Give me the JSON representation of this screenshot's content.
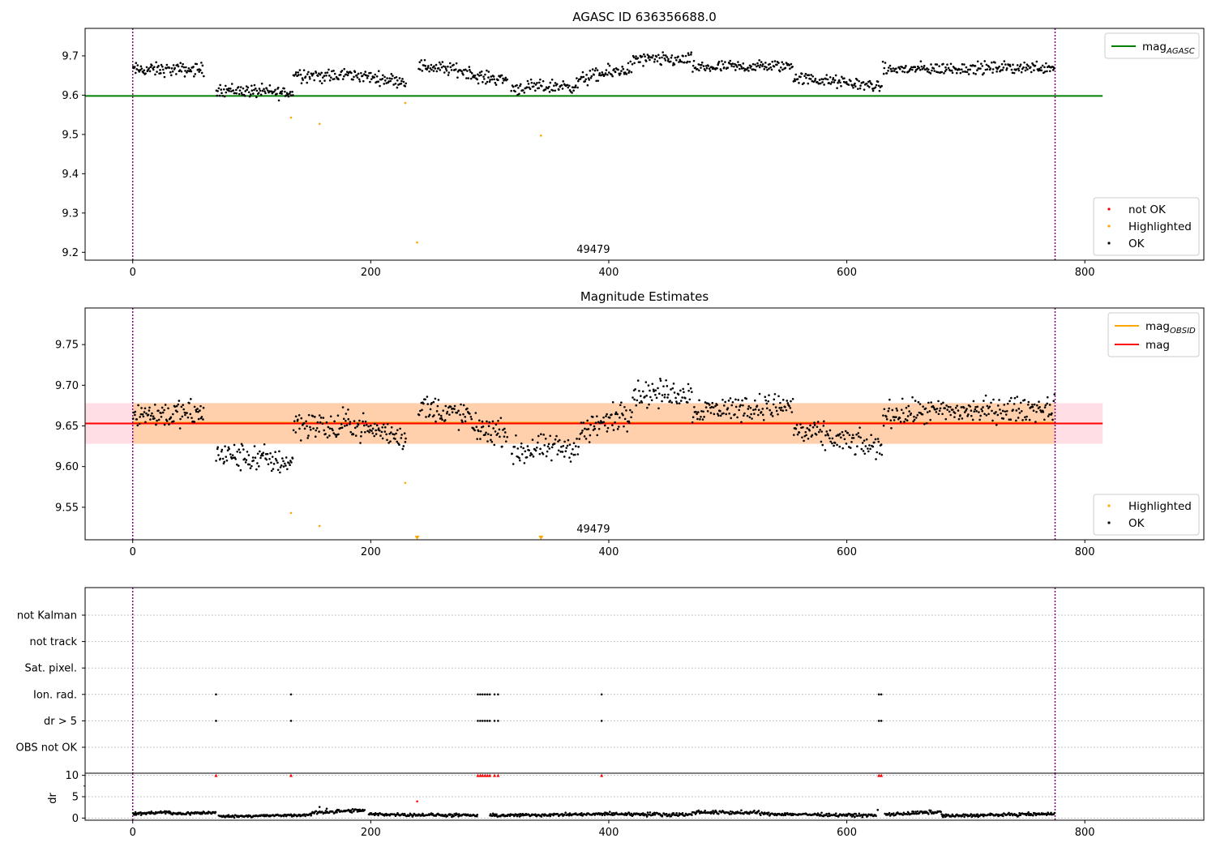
{
  "chart_data": [
    {
      "type": "scatter",
      "title": "AGASC ID 636356688.0",
      "xlim": [
        -40,
        900
      ],
      "ylim": [
        9.18,
        9.77
      ],
      "xticks": [
        0,
        200,
        400,
        600,
        800
      ],
      "yticks": [
        9.2,
        9.3,
        9.4,
        9.5,
        9.6,
        9.7
      ],
      "ytick_labels": [
        "9.2",
        "9.3",
        "9.4",
        "9.5",
        "9.6",
        "9.7"
      ],
      "obs_boundaries": [
        0,
        775
      ],
      "obsid_annotation": {
        "text": "49479",
        "x": 387
      },
      "reference_lines": [
        {
          "name": "mag",
          "sub": "AGASC",
          "y": 9.598,
          "x": [
            -40,
            815
          ],
          "color": "#008000"
        }
      ],
      "legend_lines": [
        {
          "label": "mag",
          "sub": "AGASC",
          "color": "#008000"
        }
      ],
      "legend_points": [
        {
          "label": "not OK",
          "color": "#ff0000"
        },
        {
          "label": "Highlighted",
          "color": "#ffa500"
        },
        {
          "label": "OK",
          "color": "#000000"
        }
      ],
      "series": [
        {
          "name": "Highlighted",
          "color": "#ffa500",
          "marker": "dot",
          "x": [
            133,
            157,
            229,
            239,
            343
          ],
          "y": [
            9.543,
            9.527,
            9.58,
            9.225,
            9.497
          ]
        },
        {
          "name": "OK",
          "color": "#000000",
          "marker": "dot",
          "segments": [
            {
              "x0": 0,
              "x1": 60,
              "n": 90,
              "trend": [
                9.665,
                9.665
              ],
              "amp": 0.012
            },
            {
              "x0": 70,
              "x1": 135,
              "n": 95,
              "trend": [
                9.615,
                9.605
              ],
              "amp": 0.012
            },
            {
              "x0": 135,
              "x1": 175,
              "n": 55,
              "trend": [
                9.655,
                9.645
              ],
              "amp": 0.013
            },
            {
              "x0": 175,
              "x1": 230,
              "n": 80,
              "trend": [
                9.655,
                9.635
              ],
              "amp": 0.011
            },
            {
              "x0": 240,
              "x1": 285,
              "n": 65,
              "trend": [
                9.675,
                9.66
              ],
              "amp": 0.012
            },
            {
              "x0": 285,
              "x1": 315,
              "n": 45,
              "trend": [
                9.648,
                9.64
              ],
              "amp": 0.011
            },
            {
              "x0": 318,
              "x1": 375,
              "n": 80,
              "trend": [
                9.618,
                9.625
              ],
              "amp": 0.012
            },
            {
              "x0": 375,
              "x1": 420,
              "n": 65,
              "trend": [
                9.64,
                9.67
              ],
              "amp": 0.013
            },
            {
              "x0": 420,
              "x1": 470,
              "n": 70,
              "trend": [
                9.69,
                9.69
              ],
              "amp": 0.012
            },
            {
              "x0": 470,
              "x1": 555,
              "n": 120,
              "trend": [
                9.67,
                9.675
              ],
              "amp": 0.011
            },
            {
              "x0": 555,
              "x1": 630,
              "n": 105,
              "trend": [
                9.645,
                9.622
              ],
              "amp": 0.011
            },
            {
              "x0": 630,
              "x1": 775,
              "n": 200,
              "trend": [
                9.665,
                9.672
              ],
              "amp": 0.011
            }
          ]
        }
      ]
    },
    {
      "type": "scatter",
      "title": "Magnitude Estimates",
      "xlim": [
        -40,
        900
      ],
      "ylim": [
        9.51,
        9.795
      ],
      "xticks": [
        0,
        200,
        400,
        600,
        800
      ],
      "yticks": [
        9.55,
        9.6,
        9.65,
        9.7,
        9.75
      ],
      "ytick_labels": [
        "9.55",
        "9.60",
        "9.65",
        "9.70",
        "9.75"
      ],
      "obs_boundaries": [
        0,
        775
      ],
      "obsid_annotation": {
        "text": "49479",
        "x": 387
      },
      "bands": [
        {
          "x": [
            -40,
            815
          ],
          "y": [
            9.628,
            9.678
          ],
          "color": "#ffc0cb",
          "opacity": 0.5
        },
        {
          "x": [
            0,
            775
          ],
          "y": [
            9.628,
            9.678
          ],
          "color": "#ffa500",
          "opacity": 0.25
        }
      ],
      "reference_lines": [
        {
          "name": "mag",
          "sub": "OBSID",
          "y": 9.654,
          "x": [
            0,
            775
          ],
          "color": "#ffa500"
        },
        {
          "name": "mag",
          "y": 9.653,
          "x": [
            -40,
            815
          ],
          "color": "#ff0000"
        }
      ],
      "legend_lines": [
        {
          "label": "mag",
          "sub": "OBSID",
          "color": "#ffa500"
        },
        {
          "label": "mag",
          "color": "#ff0000"
        }
      ],
      "legend_points": [
        {
          "label": "Highlighted",
          "color": "#ffa500"
        },
        {
          "label": "OK",
          "color": "#000000"
        }
      ],
      "series": [
        {
          "name": "Highlighted",
          "color": "#ffa500",
          "marker": "dot",
          "x": [
            133,
            157,
            229
          ],
          "y": [
            9.543,
            9.527,
            9.58
          ]
        },
        {
          "name": "Highlighted (below range)",
          "color": "#ffa500",
          "marker": "triangle-down",
          "x": [
            239,
            343
          ],
          "y": [
            9.511,
            9.511
          ]
        },
        {
          "name": "OK",
          "color": "#000000",
          "marker": "dot",
          "segments": [
            {
              "x0": 0,
              "x1": 60,
              "n": 90,
              "trend": [
                9.665,
                9.665
              ],
              "amp": 0.012
            },
            {
              "x0": 70,
              "x1": 135,
              "n": 95,
              "trend": [
                9.615,
                9.605
              ],
              "amp": 0.012
            },
            {
              "x0": 135,
              "x1": 175,
              "n": 55,
              "trend": [
                9.655,
                9.645
              ],
              "amp": 0.013
            },
            {
              "x0": 175,
              "x1": 230,
              "n": 80,
              "trend": [
                9.655,
                9.635
              ],
              "amp": 0.011
            },
            {
              "x0": 240,
              "x1": 285,
              "n": 65,
              "trend": [
                9.675,
                9.66
              ],
              "amp": 0.012
            },
            {
              "x0": 285,
              "x1": 315,
              "n": 45,
              "trend": [
                9.648,
                9.64
              ],
              "amp": 0.011
            },
            {
              "x0": 318,
              "x1": 375,
              "n": 80,
              "trend": [
                9.618,
                9.625
              ],
              "amp": 0.012
            },
            {
              "x0": 375,
              "x1": 420,
              "n": 65,
              "trend": [
                9.64,
                9.67
              ],
              "amp": 0.013
            },
            {
              "x0": 420,
              "x1": 470,
              "n": 70,
              "trend": [
                9.69,
                9.69
              ],
              "amp": 0.012
            },
            {
              "x0": 470,
              "x1": 555,
              "n": 120,
              "trend": [
                9.67,
                9.675
              ],
              "amp": 0.011
            },
            {
              "x0": 555,
              "x1": 630,
              "n": 105,
              "trend": [
                9.645,
                9.622
              ],
              "amp": 0.011
            },
            {
              "x0": 630,
              "x1": 775,
              "n": 200,
              "trend": [
                9.665,
                9.672
              ],
              "amp": 0.011
            }
          ]
        }
      ]
    },
    {
      "type": "scatter",
      "title": "",
      "xlim": [
        -40,
        900
      ],
      "categories": [
        "not Kalman",
        "not track",
        "Sat. pixel.",
        "Ion. rad.",
        "dr > 5",
        "OBS not OK"
      ],
      "obs_boundaries": [
        0,
        775
      ],
      "grid": "horizontal dotted",
      "flags": {
        "Ion. rad.": [
          70,
          133,
          290,
          292,
          294,
          296,
          298,
          300,
          304,
          307,
          394,
          627,
          629
        ],
        "dr > 5": [
          70,
          133,
          290,
          292,
          294,
          296,
          298,
          300,
          304,
          307,
          394,
          627,
          629
        ]
      }
    },
    {
      "type": "scatter",
      "title": "",
      "ylabel": "dr",
      "xlim": [
        -40,
        900
      ],
      "ylim": [
        -0.5,
        10.5
      ],
      "xticks": [
        0,
        200,
        400,
        600,
        800
      ],
      "yticks": [
        0,
        5,
        10
      ],
      "ytick_labels": [
        "0",
        "5",
        "10"
      ],
      "obs_boundaries": [
        0,
        775
      ],
      "grid": "horizontal dotted",
      "series": [
        {
          "name": "dr > 5 (clipped)",
          "color": "#ff0000",
          "marker": "triangle-up",
          "x": [
            70,
            133,
            290,
            292,
            294,
            296,
            298,
            300,
            304,
            307,
            394,
            627,
            629
          ],
          "y": [
            10,
            10,
            10,
            10,
            10,
            10,
            10,
            10,
            10,
            10,
            10,
            10,
            10
          ]
        },
        {
          "name": "Highlighted",
          "color": "#ff0000",
          "marker": "dot",
          "x": [
            239
          ],
          "y": [
            3.9
          ]
        },
        {
          "name": "dr",
          "color": "#000000",
          "marker": "dot",
          "x": [
            157,
            163,
            626
          ],
          "y": [
            2.6,
            2.2,
            1.9
          ],
          "segments": [
            {
              "x0": 0,
              "x1": 32,
              "n": 60,
              "trend": [
                1.0,
                1.4
              ],
              "amp": 0.25
            },
            {
              "x0": 32,
              "x1": 70,
              "n": 60,
              "trend": [
                1.0,
                1.3
              ],
              "amp": 0.25
            },
            {
              "x0": 72,
              "x1": 150,
              "n": 120,
              "trend": [
                0.4,
                0.7
              ],
              "amp": 0.2
            },
            {
              "x0": 150,
              "x1": 195,
              "n": 70,
              "trend": [
                1.3,
                1.8
              ],
              "amp": 0.3
            },
            {
              "x0": 198,
              "x1": 290,
              "n": 140,
              "trend": [
                0.9,
                0.6
              ],
              "amp": 0.25
            },
            {
              "x0": 300,
              "x1": 395,
              "n": 150,
              "trend": [
                0.6,
                0.9
              ],
              "amp": 0.25
            },
            {
              "x0": 395,
              "x1": 470,
              "n": 120,
              "trend": [
                1.0,
                0.8
              ],
              "amp": 0.3
            },
            {
              "x0": 470,
              "x1": 530,
              "n": 90,
              "trend": [
                1.4,
                1.2
              ],
              "amp": 0.3
            },
            {
              "x0": 530,
              "x1": 625,
              "n": 140,
              "trend": [
                1.0,
                0.6
              ],
              "amp": 0.25
            },
            {
              "x0": 632,
              "x1": 680,
              "n": 70,
              "trend": [
                0.8,
                1.5
              ],
              "amp": 0.3
            },
            {
              "x0": 680,
              "x1": 775,
              "n": 150,
              "trend": [
                0.5,
                1.0
              ],
              "amp": 0.25
            }
          ]
        }
      ]
    }
  ]
}
